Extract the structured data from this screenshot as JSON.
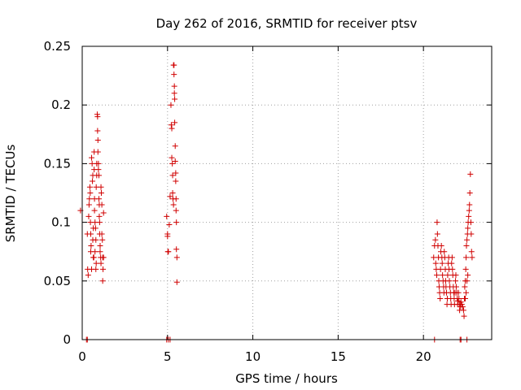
{
  "chart_data": {
    "type": "scatter",
    "title": "Day 262 of 2016, SRMTID for receiver ptsv",
    "xlabel": "GPS time / hours",
    "ylabel": "SRMTID / TECUs",
    "xlim": [
      0,
      24
    ],
    "ylim": [
      0,
      0.25
    ],
    "x_ticks": [
      "0",
      "5",
      "10",
      "15",
      "20"
    ],
    "y_ticks": [
      "0",
      "0.05",
      "0.1",
      "0.15",
      "0.2",
      "0.25"
    ],
    "grid": true,
    "legend": "none",
    "marker": "+",
    "color": "#d00000",
    "series": [
      {
        "points": [
          [
            -0.1,
            0.11
          ],
          [
            0.25,
            0.0
          ],
          [
            0.3,
            0.0
          ],
          [
            0.3,
            0.09
          ],
          [
            0.32,
            0.06
          ],
          [
            0.35,
            0.055
          ],
          [
            0.38,
            0.105
          ],
          [
            0.4,
            0.115
          ],
          [
            0.42,
            0.12
          ],
          [
            0.45,
            0.13
          ],
          [
            0.47,
            0.125
          ],
          [
            0.48,
            0.1
          ],
          [
            0.5,
            0.09
          ],
          [
            0.52,
            0.08
          ],
          [
            0.5,
            0.075
          ],
          [
            0.55,
            0.06
          ],
          [
            0.55,
            0.155
          ],
          [
            0.58,
            0.15
          ],
          [
            0.6,
            0.135
          ],
          [
            0.62,
            0.14
          ],
          [
            0.62,
            0.085
          ],
          [
            0.65,
            0.095
          ],
          [
            0.65,
            0.07
          ],
          [
            0.68,
            0.07
          ],
          [
            0.7,
            0.16
          ],
          [
            0.7,
            0.145
          ],
          [
            0.72,
            0.12
          ],
          [
            0.72,
            0.11
          ],
          [
            0.75,
            0.075
          ],
          [
            0.75,
            0.1
          ],
          [
            0.78,
            0.095
          ],
          [
            0.8,
            0.085
          ],
          [
            0.8,
            0.06
          ],
          [
            0.82,
            0.065
          ],
          [
            0.82,
            0.13
          ],
          [
            0.85,
            0.15
          ],
          [
            0.85,
            0.14
          ],
          [
            0.88,
            0.192
          ],
          [
            0.9,
            0.19
          ],
          [
            0.9,
            0.178
          ],
          [
            0.92,
            0.17
          ],
          [
            0.92,
            0.16
          ],
          [
            0.95,
            0.15
          ],
          [
            0.95,
            0.145
          ],
          [
            0.98,
            0.14
          ],
          [
            0.98,
            0.12
          ],
          [
            1.0,
            0.115
          ],
          [
            1.0,
            0.105
          ],
          [
            1.02,
            0.1
          ],
          [
            1.02,
            0.09
          ],
          [
            1.05,
            0.08
          ],
          [
            1.05,
            0.075
          ],
          [
            1.08,
            0.07
          ],
          [
            1.1,
            0.065
          ],
          [
            1.1,
            0.13
          ],
          [
            1.12,
            0.125
          ],
          [
            1.15,
            0.115
          ],
          [
            1.15,
            0.09
          ],
          [
            1.18,
            0.085
          ],
          [
            1.2,
            0.07
          ],
          [
            1.2,
            0.05
          ],
          [
            1.22,
            0.06
          ],
          [
            1.25,
            0.07
          ],
          [
            1.25,
            0.108
          ],
          [
            4.95,
            0.0
          ],
          [
            5.05,
            0.0
          ],
          [
            5.15,
            0.0
          ],
          [
            4.95,
            0.105
          ],
          [
            5.0,
            0.09
          ],
          [
            5.0,
            0.088
          ],
          [
            5.02,
            0.075
          ],
          [
            5.05,
            0.075
          ],
          [
            5.1,
            0.098
          ],
          [
            5.15,
            0.122
          ],
          [
            5.2,
            0.2
          ],
          [
            5.22,
            0.183
          ],
          [
            5.25,
            0.18
          ],
          [
            5.25,
            0.155
          ],
          [
            5.28,
            0.15
          ],
          [
            5.3,
            0.14
          ],
          [
            5.3,
            0.125
          ],
          [
            5.32,
            0.12
          ],
          [
            5.35,
            0.115
          ],
          [
            5.35,
            0.234
          ],
          [
            5.38,
            0.234
          ],
          [
            5.38,
            0.226
          ],
          [
            5.4,
            0.216
          ],
          [
            5.4,
            0.21
          ],
          [
            5.42,
            0.205
          ],
          [
            5.42,
            0.185
          ],
          [
            5.45,
            0.165
          ],
          [
            5.45,
            0.152
          ],
          [
            5.48,
            0.142
          ],
          [
            5.48,
            0.135
          ],
          [
            5.5,
            0.12
          ],
          [
            5.5,
            0.11
          ],
          [
            5.52,
            0.1
          ],
          [
            5.52,
            0.077
          ],
          [
            5.55,
            0.07
          ],
          [
            5.55,
            0.049
          ],
          [
            20.65,
            0.0
          ],
          [
            22.15,
            0.0
          ],
          [
            22.2,
            0.0
          ],
          [
            22.55,
            0.0
          ],
          [
            20.6,
            0.07
          ],
          [
            20.65,
            0.08
          ],
          [
            20.7,
            0.085
          ],
          [
            20.72,
            0.065
          ],
          [
            20.75,
            0.06
          ],
          [
            20.78,
            0.055
          ],
          [
            20.8,
            0.1
          ],
          [
            20.82,
            0.09
          ],
          [
            20.85,
            0.08
          ],
          [
            20.88,
            0.07
          ],
          [
            20.9,
            0.05
          ],
          [
            20.92,
            0.045
          ],
          [
            20.95,
            0.04
          ],
          [
            20.98,
            0.035
          ],
          [
            21.0,
            0.06
          ],
          [
            21.02,
            0.075
          ],
          [
            21.05,
            0.08
          ],
          [
            21.08,
            0.07
          ],
          [
            21.1,
            0.065
          ],
          [
            21.12,
            0.055
          ],
          [
            21.15,
            0.05
          ],
          [
            21.18,
            0.045
          ],
          [
            21.2,
            0.04
          ],
          [
            21.22,
            0.075
          ],
          [
            21.25,
            0.07
          ],
          [
            21.28,
            0.06
          ],
          [
            21.3,
            0.05
          ],
          [
            21.32,
            0.045
          ],
          [
            21.35,
            0.04
          ],
          [
            21.38,
            0.03
          ],
          [
            21.4,
            0.035
          ],
          [
            21.42,
            0.055
          ],
          [
            21.45,
            0.065
          ],
          [
            21.48,
            0.07
          ],
          [
            21.5,
            0.06
          ],
          [
            21.52,
            0.05
          ],
          [
            21.55,
            0.045
          ],
          [
            21.58,
            0.04
          ],
          [
            21.6,
            0.035
          ],
          [
            21.62,
            0.03
          ],
          [
            21.65,
            0.065
          ],
          [
            21.68,
            0.07
          ],
          [
            21.7,
            0.06
          ],
          [
            21.72,
            0.055
          ],
          [
            21.75,
            0.045
          ],
          [
            21.78,
            0.04
          ],
          [
            21.8,
            0.035
          ],
          [
            21.82,
            0.03
          ],
          [
            21.85,
            0.04
          ],
          [
            21.88,
            0.05
          ],
          [
            21.9,
            0.055
          ],
          [
            21.92,
            0.045
          ],
          [
            21.95,
            0.04
          ],
          [
            21.98,
            0.035
          ],
          [
            22.0,
            0.03
          ],
          [
            22.02,
            0.033
          ],
          [
            22.05,
            0.04
          ],
          [
            22.08,
            0.035
          ],
          [
            22.1,
            0.03
          ],
          [
            22.12,
            0.025
          ],
          [
            22.15,
            0.03
          ],
          [
            22.18,
            0.028
          ],
          [
            22.2,
            0.032
          ],
          [
            22.25,
            0.03
          ],
          [
            22.3,
            0.028
          ],
          [
            22.35,
            0.025
          ],
          [
            22.38,
            0.02
          ],
          [
            22.4,
            0.035
          ],
          [
            22.42,
            0.045
          ],
          [
            22.45,
            0.05
          ],
          [
            22.48,
            0.06
          ],
          [
            22.5,
            0.07
          ],
          [
            22.52,
            0.08
          ],
          [
            22.55,
            0.085
          ],
          [
            22.58,
            0.09
          ],
          [
            22.6,
            0.095
          ],
          [
            22.62,
            0.1
          ],
          [
            22.65,
            0.105
          ],
          [
            22.68,
            0.11
          ],
          [
            22.7,
            0.115
          ],
          [
            22.72,
            0.125
          ],
          [
            22.75,
            0.141
          ],
          [
            22.78,
            0.1
          ],
          [
            22.8,
            0.09
          ],
          [
            22.82,
            0.075
          ],
          [
            22.85,
            0.07
          ],
          [
            22.6,
            0.055
          ],
          [
            22.55,
            0.05
          ],
          [
            22.5,
            0.04
          ],
          [
            22.45,
            0.035
          ]
        ]
      }
    ]
  }
}
